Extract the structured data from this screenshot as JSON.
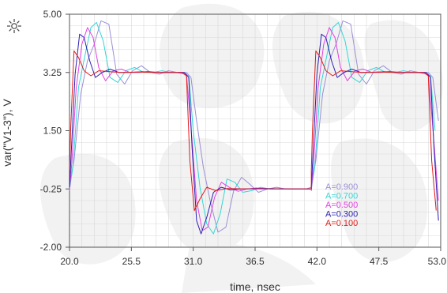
{
  "chart_data": {
    "type": "line",
    "xlabel": "time, nsec",
    "ylabel": "var(\"V1-3\"), V",
    "xlim": [
      20.0,
      53.0
    ],
    "ylim": [
      -2.0,
      5.0
    ],
    "x_ticks": [
      "20.0",
      "25.5",
      "31.0",
      "36.5",
      "42.0",
      "47.5",
      "53.0"
    ],
    "y_ticks": [
      "5.00",
      "3.25",
      "1.50",
      "-0.25",
      "-2.00"
    ],
    "grid": true,
    "legend_position": "bottom-right",
    "period_ns": 21.5,
    "series": [
      {
        "name": "A=0.900",
        "color": "#9a8fd6",
        "values": [
          [
            20.0,
            -0.15
          ],
          [
            20.4,
            0.6
          ],
          [
            21.0,
            2.6
          ],
          [
            21.6,
            3.6
          ],
          [
            22.2,
            4.1
          ],
          [
            22.8,
            4.8
          ],
          [
            23.5,
            4.7
          ],
          [
            24.2,
            3.2
          ],
          [
            24.9,
            2.9
          ],
          [
            25.6,
            3.3
          ],
          [
            26.4,
            3.45
          ],
          [
            27.2,
            3.25
          ],
          [
            28.0,
            3.2
          ],
          [
            28.8,
            3.3
          ],
          [
            29.6,
            3.25
          ],
          [
            30.4,
            3.25
          ],
          [
            30.8,
            3.1
          ],
          [
            31.3,
            1.8
          ],
          [
            31.9,
            0.4
          ],
          [
            32.5,
            -0.6
          ],
          [
            33.2,
            -1.55
          ],
          [
            33.9,
            -1.4
          ],
          [
            34.6,
            -0.3
          ],
          [
            35.3,
            0.1
          ],
          [
            36.0,
            -0.1
          ],
          [
            36.8,
            -0.35
          ],
          [
            37.6,
            -0.25
          ],
          [
            38.4,
            -0.2
          ],
          [
            39.2,
            -0.25
          ],
          [
            40.0,
            -0.25
          ],
          [
            41.0,
            -0.25
          ],
          [
            41.5,
            -0.2
          ]
        ]
      },
      {
        "name": "A=0.700",
        "color": "#33d6d6",
        "values": [
          [
            20.0,
            -0.25
          ],
          [
            20.3,
            0.4
          ],
          [
            20.8,
            2.8
          ],
          [
            21.4,
            3.8
          ],
          [
            21.9,
            4.6
          ],
          [
            22.4,
            4.75
          ],
          [
            23.0,
            4.2
          ],
          [
            23.6,
            3.1
          ],
          [
            24.3,
            2.95
          ],
          [
            25.0,
            3.3
          ],
          [
            25.8,
            3.4
          ],
          [
            26.6,
            3.25
          ],
          [
            27.4,
            3.25
          ],
          [
            28.2,
            3.3
          ],
          [
            29.0,
            3.25
          ],
          [
            30.0,
            3.25
          ],
          [
            30.6,
            3.15
          ],
          [
            31.0,
            1.5
          ],
          [
            31.6,
            -0.2
          ],
          [
            32.2,
            -1.3
          ],
          [
            32.8,
            -1.6
          ],
          [
            33.4,
            -1.0
          ],
          [
            34.0,
            0.05
          ],
          [
            34.7,
            -0.05
          ],
          [
            35.4,
            -0.35
          ],
          [
            36.2,
            -0.3
          ],
          [
            37.0,
            -0.2
          ],
          [
            37.8,
            -0.25
          ],
          [
            38.6,
            -0.25
          ],
          [
            40.0,
            -0.25
          ],
          [
            41.5,
            -0.25
          ]
        ]
      },
      {
        "name": "A=0.500",
        "color": "#e23fe2",
        "values": [
          [
            20.0,
            -0.3
          ],
          [
            20.2,
            0.5
          ],
          [
            20.6,
            2.8
          ],
          [
            21.1,
            4.1
          ],
          [
            21.6,
            4.6
          ],
          [
            22.1,
            4.3
          ],
          [
            22.6,
            3.4
          ],
          [
            23.2,
            3.0
          ],
          [
            23.9,
            3.3
          ],
          [
            24.6,
            3.35
          ],
          [
            25.4,
            3.25
          ],
          [
            26.2,
            3.25
          ],
          [
            27.0,
            3.28
          ],
          [
            28.0,
            3.25
          ],
          [
            29.5,
            3.25
          ],
          [
            30.4,
            3.2
          ],
          [
            30.8,
            1.6
          ],
          [
            31.3,
            -0.6
          ],
          [
            31.8,
            -1.5
          ],
          [
            32.3,
            -1.4
          ],
          [
            32.9,
            -0.5
          ],
          [
            33.5,
            -0.05
          ],
          [
            34.2,
            -0.2
          ],
          [
            35.0,
            -0.32
          ],
          [
            35.8,
            -0.25
          ],
          [
            36.6,
            -0.22
          ],
          [
            38.0,
            -0.25
          ],
          [
            40.0,
            -0.25
          ],
          [
            41.5,
            -0.25
          ]
        ]
      },
      {
        "name": "A=0.300",
        "color": "#2a1fb0",
        "values": [
          [
            20.0,
            -0.2
          ],
          [
            20.15,
            0.8
          ],
          [
            20.5,
            3.2
          ],
          [
            20.9,
            4.4
          ],
          [
            21.3,
            4.3
          ],
          [
            21.8,
            3.6
          ],
          [
            22.3,
            3.1
          ],
          [
            22.9,
            3.25
          ],
          [
            23.6,
            3.35
          ],
          [
            24.4,
            3.25
          ],
          [
            25.2,
            3.25
          ],
          [
            26.5,
            3.27
          ],
          [
            28.0,
            3.25
          ],
          [
            30.2,
            3.25
          ],
          [
            30.6,
            3.1
          ],
          [
            30.9,
            1.0
          ],
          [
            31.3,
            -1.2
          ],
          [
            31.7,
            -1.6
          ],
          [
            32.2,
            -1.1
          ],
          [
            32.8,
            -0.35
          ],
          [
            33.5,
            -0.2
          ],
          [
            34.3,
            -0.28
          ],
          [
            35.2,
            -0.25
          ],
          [
            37.0,
            -0.24
          ],
          [
            40.0,
            -0.25
          ],
          [
            41.5,
            -0.25
          ]
        ]
      },
      {
        "name": "A=0.100",
        "color": "#e31a1a",
        "values": [
          [
            20.0,
            0.3
          ],
          [
            20.1,
            1.5
          ],
          [
            20.4,
            3.9
          ],
          [
            20.8,
            3.7
          ],
          [
            21.3,
            3.3
          ],
          [
            21.9,
            3.15
          ],
          [
            22.6,
            3.3
          ],
          [
            23.4,
            3.28
          ],
          [
            24.5,
            3.25
          ],
          [
            26.0,
            3.26
          ],
          [
            28.0,
            3.25
          ],
          [
            30.0,
            3.25
          ],
          [
            30.4,
            3.15
          ],
          [
            30.7,
            0.6
          ],
          [
            31.1,
            -0.9
          ],
          [
            31.6,
            -0.55
          ],
          [
            32.2,
            -0.2
          ],
          [
            33.0,
            -0.3
          ],
          [
            34.0,
            -0.24
          ],
          [
            36.0,
            -0.25
          ],
          [
            38.0,
            -0.25
          ],
          [
            40.0,
            -0.25
          ],
          [
            41.5,
            -0.25
          ]
        ]
      }
    ]
  },
  "colors": {
    "axis": "#555555",
    "grid": "#d9d9d9",
    "watermark": "#eeeeee"
  },
  "toolbar": {
    "marker_icon": "crosshair-sun-icon"
  }
}
